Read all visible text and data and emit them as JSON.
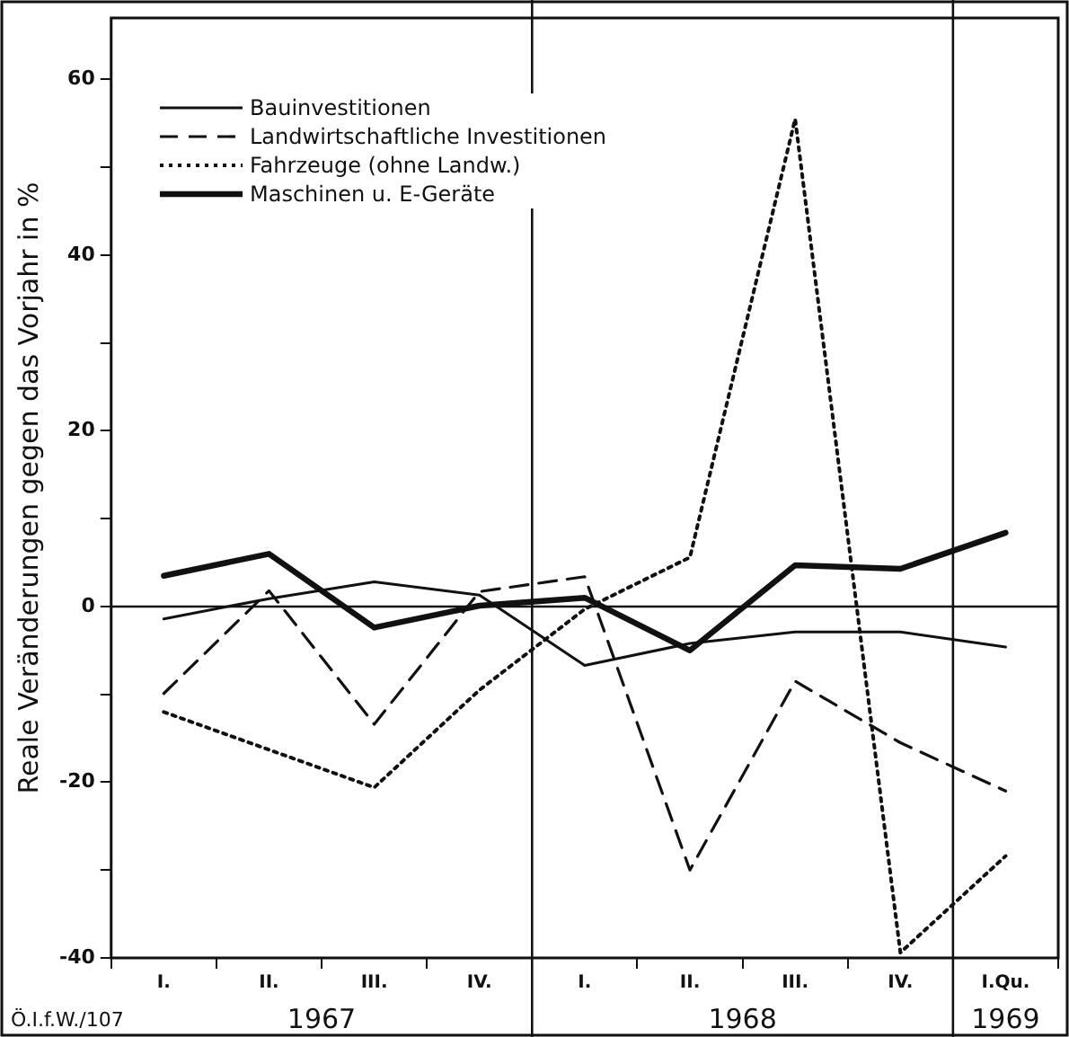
{
  "chart_data": {
    "type": "line",
    "ylabel": "Reale Veränderungen gegen das Vorjahr in %",
    "categories": [
      "I.",
      "II.",
      "III.",
      "IV.",
      "I.",
      "II.",
      "III.",
      "IV.",
      "I.Qu."
    ],
    "series": [
      {
        "name": "Bauinvestitionen",
        "color": "#111111",
        "line_style": "solid",
        "values": [
          -1.4,
          0.9,
          2.8,
          1.3,
          -6.7,
          -4.2,
          -2.9,
          -2.9,
          -4.6
        ]
      },
      {
        "name": "Landwirtschaftliche Investitionen",
        "color": "#111111",
        "line_style": "dashed",
        "values": [
          -9.9,
          1.8,
          -13.4,
          1.7,
          3.4,
          -30,
          -8.5,
          -15.5,
          -21
        ]
      },
      {
        "name": "Fahrzeuge (ohne Landw.)",
        "color": "#111111",
        "line_style": "dotted",
        "values": [
          -12,
          -16.3,
          -20.6,
          -9.5,
          -0.3,
          5.6,
          55.5,
          -39.4,
          -28.4
        ]
      },
      {
        "name": "Maschinen u. E-Geräte",
        "color": "#111111",
        "line_style": "solid",
        "values": [
          3.5,
          6,
          -2.4,
          0.1,
          1,
          -5,
          4.7,
          4.3,
          8.4
        ]
      }
    ],
    "ylim": [
      -40,
      67
    ],
    "yticks": [
      -40,
      {
        "value": -30,
        "label": null
      },
      -20,
      {
        "value": -10,
        "label": null
      },
      0,
      {
        "value": 10,
        "label": null
      },
      20,
      {
        "value": 30,
        "label": null
      },
      40,
      {
        "value": 50,
        "label": null
      },
      60
    ],
    "ref_lines": [
      {
        "axis": "y",
        "value": 0
      }
    ],
    "annotations": [
      "Ö.I.f.W./107",
      "1967",
      "1968",
      "1969"
    ],
    "legend": "top left",
    "grid": false,
    "marker": "none"
  }
}
